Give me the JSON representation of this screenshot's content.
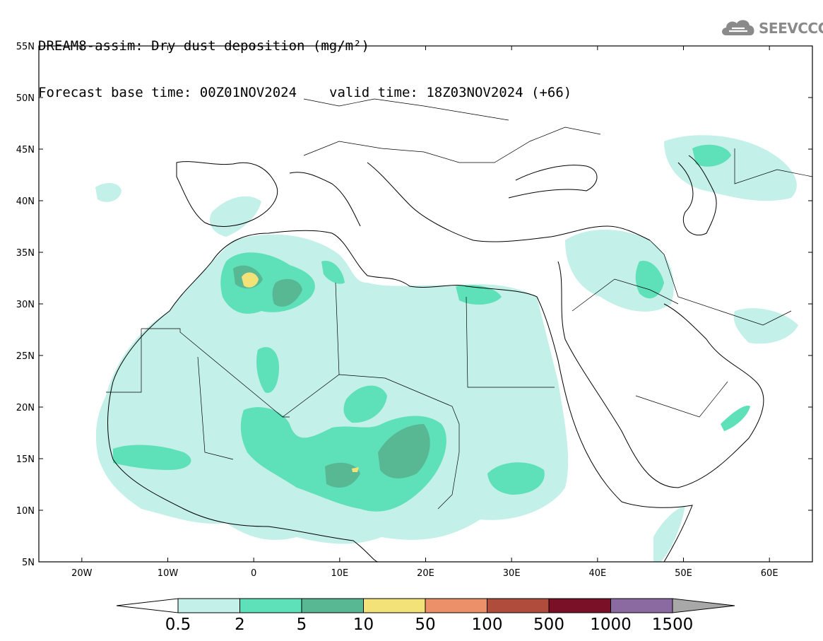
{
  "title": {
    "line1": "DREAM8-assim: Dry dust deposition (mg/m²)",
    "base_time": "Forecast base time: 00Z01NOV2024",
    "valid_time": "valid time: 18Z03NOV2024 (+66)"
  },
  "logo": {
    "text": "SEEVCCC",
    "icon": "cloud-icon",
    "color": "#8a8a8a"
  },
  "map": {
    "lon_range": [
      -25,
      65
    ],
    "lat_range": [
      5,
      55
    ],
    "lat_ticks": [
      "55N",
      "50N",
      "45N",
      "40N",
      "35N",
      "30N",
      "25N",
      "20N",
      "15N",
      "10N",
      "5N"
    ],
    "lon_ticks": [
      "20W",
      "10W",
      "0",
      "10E",
      "20E",
      "30E",
      "40E",
      "50E",
      "60E"
    ]
  },
  "colorbar": {
    "labels": [
      "0.5",
      "2",
      "5",
      "10",
      "50",
      "100",
      "500",
      "1000",
      "1500"
    ],
    "colors": [
      "#c3f0e8",
      "#5ee0b8",
      "#58b894",
      "#f2e277",
      "#eb9068",
      "#b04c3c",
      "#7a1028",
      "#8a6aa0"
    ],
    "under_color": "#ffffff",
    "over_color": "#a8a8a8"
  }
}
